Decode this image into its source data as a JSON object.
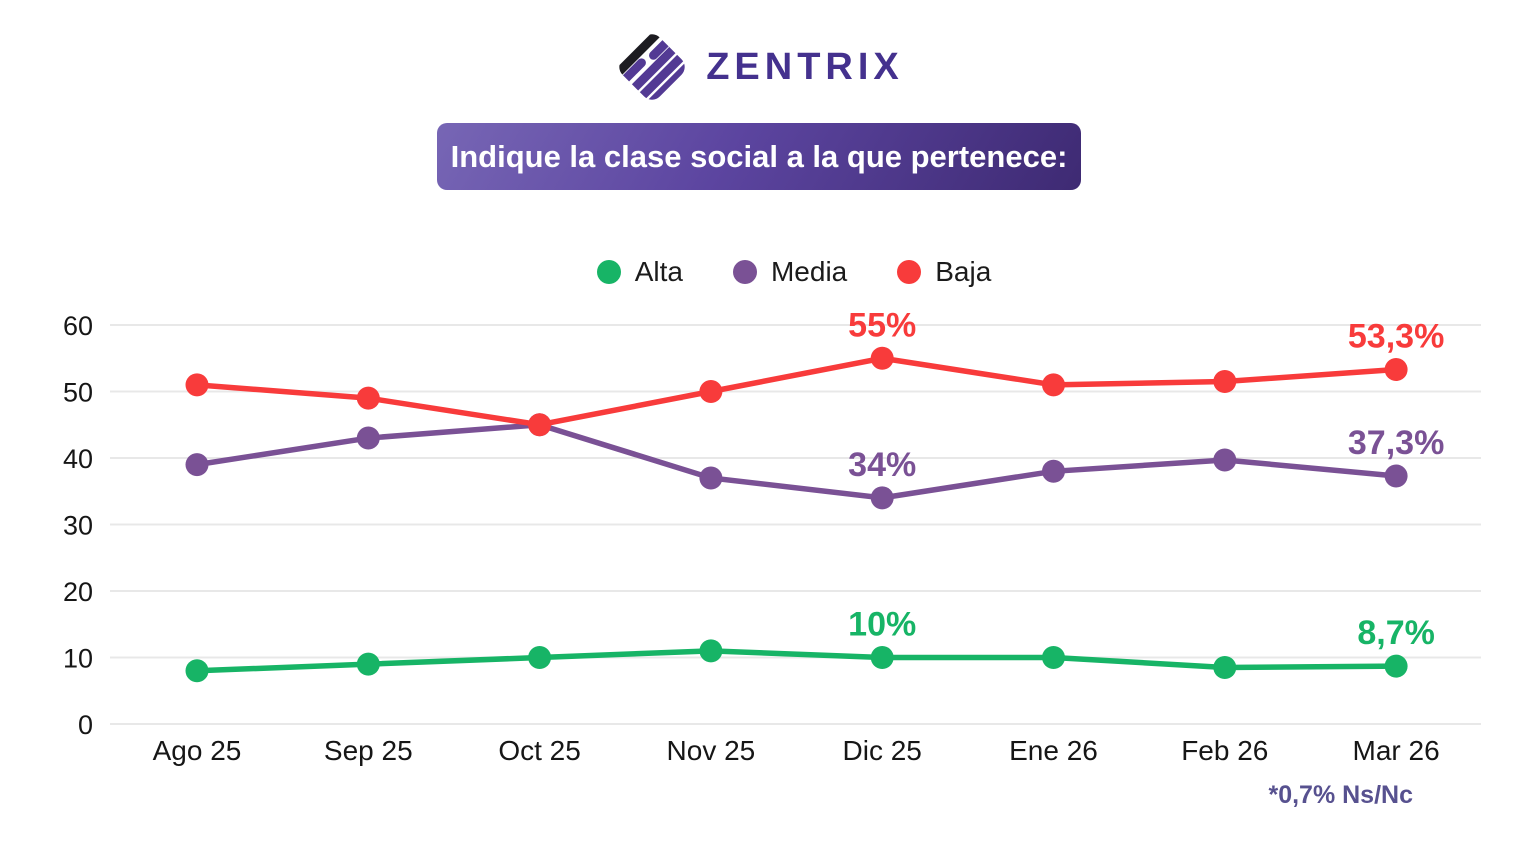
{
  "header": {
    "brand": "ZENTRIX"
  },
  "title_banner": {
    "text": "Indique la clase social a la que pertenece:"
  },
  "footnote": "*0,7% Ns/Nc",
  "colors": {
    "alta": "#17b466",
    "media": "#7a5195",
    "baja": "#f83b3b",
    "gridline": "#e8e8e8",
    "axis_text": "#161616",
    "banner_start": "#7766b5",
    "banner_end": "#3e2a73",
    "brand_purple": "#44318e",
    "footnote_color": "#57518f"
  },
  "chart_data": {
    "type": "line",
    "title": "Indique la clase social a la que pertenece:",
    "xlabel": "",
    "ylabel": "",
    "categories": [
      "Ago 25",
      "Sep 25",
      "Oct 25",
      "Nov 25",
      "Dic 25",
      "Ene 26",
      "Feb 26",
      "Mar 26"
    ],
    "y_ticks": [
      0,
      10,
      20,
      30,
      40,
      50,
      60
    ],
    "ylim": [
      0,
      65
    ],
    "grid": true,
    "legend_position": "top-center",
    "series": [
      {
        "name": "Alta",
        "color": "#17b466",
        "values": [
          8,
          9,
          10,
          11,
          10,
          10,
          8.5,
          8.7
        ],
        "point_labels": {
          "4": "10%",
          "7": "8,7%"
        }
      },
      {
        "name": "Media",
        "color": "#7a5195",
        "values": [
          39,
          43,
          45,
          37,
          34,
          38,
          39.7,
          37.3
        ],
        "point_labels": {
          "4": "34%",
          "7": "37,3%"
        }
      },
      {
        "name": "Baja",
        "color": "#f83b3b",
        "values": [
          51,
          49,
          45,
          50,
          55,
          51,
          51.5,
          53.3
        ],
        "point_labels": {
          "4": "55%",
          "7": "53,3%"
        }
      }
    ]
  }
}
